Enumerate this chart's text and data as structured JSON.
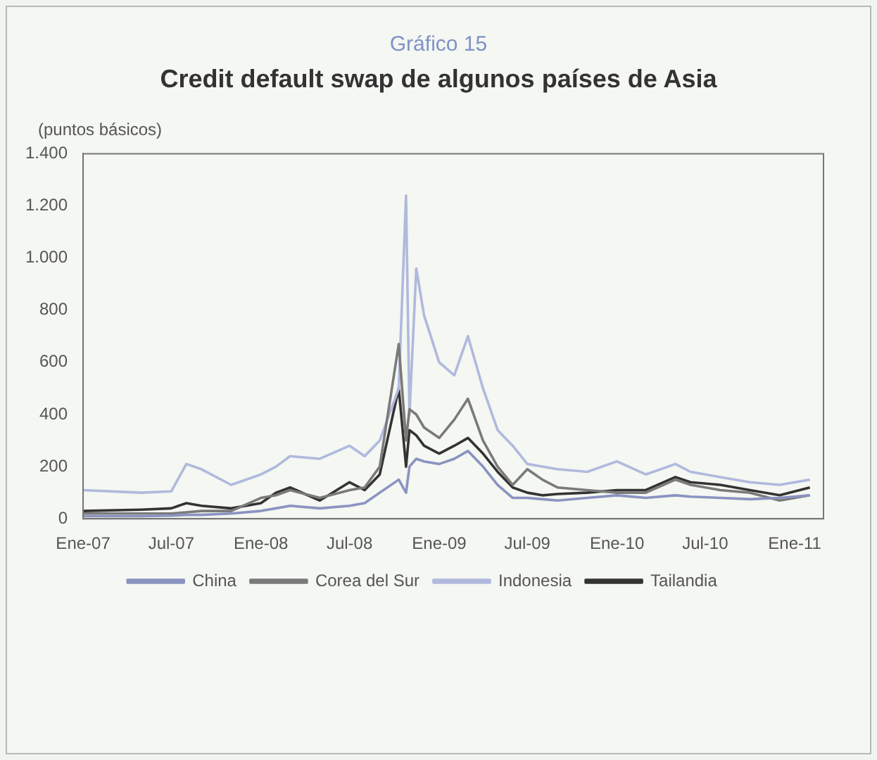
{
  "chart_data": {
    "type": "line",
    "title": "Gráfico 15",
    "subtitle": "Credit default swap de algunos países de Asia",
    "ylabel": "(puntos básicos)",
    "xlim": [
      "2007-01",
      "2011-03"
    ],
    "xticks": [
      {
        "value": "2007-01",
        "label": "Ene-07"
      },
      {
        "value": "2007-07",
        "label": "Jul-07"
      },
      {
        "value": "2008-01",
        "label": "Ene-08"
      },
      {
        "value": "2008-07",
        "label": "Jul-08"
      },
      {
        "value": "2009-01",
        "label": "Ene-09"
      },
      {
        "value": "2009-07",
        "label": "Jul-09"
      },
      {
        "value": "2010-01",
        "label": "Ene-10"
      },
      {
        "value": "2010-07",
        "label": "Jul-10"
      },
      {
        "value": "2011-01",
        "label": "Ene-11"
      }
    ],
    "ylim": [
      0,
      1400
    ],
    "yticks": [
      0,
      200,
      400,
      600,
      800,
      {
        "value": 1000,
        "label": "1.000"
      },
      {
        "value": 1200,
        "label": "1.200"
      },
      {
        "value": 1400,
        "label": "1.400"
      }
    ],
    "x": [
      "2007-01-01",
      "2007-05-01",
      "2007-07-01",
      "2007-08-01",
      "2007-09-01",
      "2007-11-01",
      "2008-01-01",
      "2008-02-01",
      "2008-03-01",
      "2008-05-01",
      "2008-07-01",
      "2008-08-01",
      "2008-09-01",
      "2008-10-10",
      "2008-10-25",
      "2008-11-01",
      "2008-11-15",
      "2008-12-01",
      "2009-01-01",
      "2009-02-01",
      "2009-03-01",
      "2009-04-01",
      "2009-05-01",
      "2009-06-01",
      "2009-07-01",
      "2009-08-01",
      "2009-09-01",
      "2009-11-01",
      "2010-01-01",
      "2010-03-01",
      "2010-05-01",
      "2010-06-01",
      "2010-08-01",
      "2010-10-01",
      "2010-12-01",
      "2011-02-01"
    ],
    "series": [
      {
        "name": "China",
        "color": "#8a93c0",
        "values": [
          10,
          10,
          12,
          15,
          15,
          20,
          30,
          40,
          50,
          40,
          50,
          60,
          100,
          150,
          100,
          200,
          230,
          220,
          210,
          230,
          260,
          200,
          130,
          80,
          80,
          75,
          70,
          80,
          90,
          80,
          90,
          85,
          80,
          75,
          80,
          90
        ]
      },
      {
        "name": "Corea del Sur",
        "color": "#7a7a7a",
        "values": [
          20,
          20,
          20,
          25,
          30,
          30,
          80,
          90,
          110,
          80,
          110,
          120,
          200,
          670,
          300,
          420,
          400,
          350,
          310,
          380,
          460,
          300,
          200,
          130,
          190,
          150,
          120,
          110,
          100,
          100,
          150,
          130,
          110,
          100,
          70,
          90
        ]
      },
      {
        "name": "Indonesia",
        "color": "#b0b9dd",
        "values": [
          110,
          100,
          105,
          210,
          190,
          130,
          170,
          200,
          240,
          230,
          280,
          240,
          300,
          500,
          1240,
          400,
          960,
          780,
          600,
          550,
          700,
          500,
          340,
          280,
          210,
          200,
          190,
          180,
          220,
          170,
          210,
          180,
          160,
          140,
          130,
          150
        ]
      },
      {
        "name": "Tailandia",
        "color": "#333333",
        "values": [
          30,
          35,
          40,
          60,
          50,
          40,
          60,
          100,
          120,
          70,
          140,
          110,
          170,
          500,
          200,
          340,
          320,
          280,
          250,
          280,
          310,
          250,
          180,
          120,
          100,
          90,
          95,
          100,
          110,
          110,
          160,
          140,
          130,
          110,
          90,
          120
        ]
      }
    ],
    "grid": false,
    "legend": "bottom",
    "marker": "none",
    "line_style": "solid"
  }
}
